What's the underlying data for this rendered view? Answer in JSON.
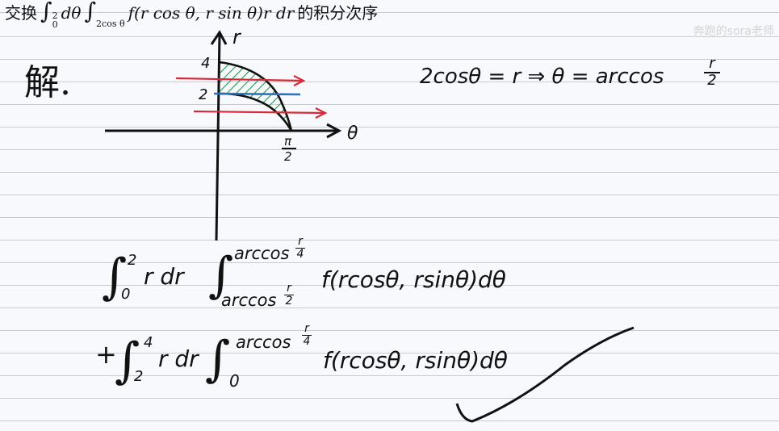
{
  "title": {
    "prefix": "交换",
    "int_sign": "∫",
    "outer_lower": "0",
    "outer_upper": "2",
    "outer_diff": "dθ",
    "inner_lower": "2cos θ",
    "integrand": "f(r cos θ, r sin θ)r dr",
    "suffix": "的积分次序"
  },
  "watermark": "奔跑的sora老师",
  "solution_label": "解.",
  "relation": "2cosθ = r ⇒ θ = arccos",
  "relation_frac": {
    "num": "r",
    "den": "2"
  },
  "graph": {
    "r_axis_label": "r",
    "theta_axis_label": "θ",
    "tick_4": "4",
    "tick_2": "2",
    "pi_over_2": {
      "num": "π",
      "den": "2"
    }
  },
  "answer": {
    "int_sign": "∫",
    "first": {
      "lower": "0",
      "upper": "2",
      "rdr": "r dr",
      "inner_upper": "arccos",
      "inner_upper_frac": {
        "num": "r",
        "den": "4"
      },
      "inner_lower": "arccos",
      "inner_lower_frac": {
        "num": "r",
        "den": "2"
      },
      "integrand": "f(rcosθ, rsinθ)dθ"
    },
    "second": {
      "plus": "+",
      "lower": "2",
      "upper": "4",
      "rdr": "r dr",
      "inner_upper": "arccos",
      "inner_upper_frac": {
        "num": "r",
        "den": "4"
      },
      "inner_lower": "0",
      "integrand": "f(rcosθ, rsinθ)dθ"
    }
  },
  "colors": {
    "ink": "#111111",
    "red": "#d62a3a",
    "blue": "#2a6fbf",
    "hatch": "#1f9a4a",
    "ruled": "#bccde8"
  }
}
